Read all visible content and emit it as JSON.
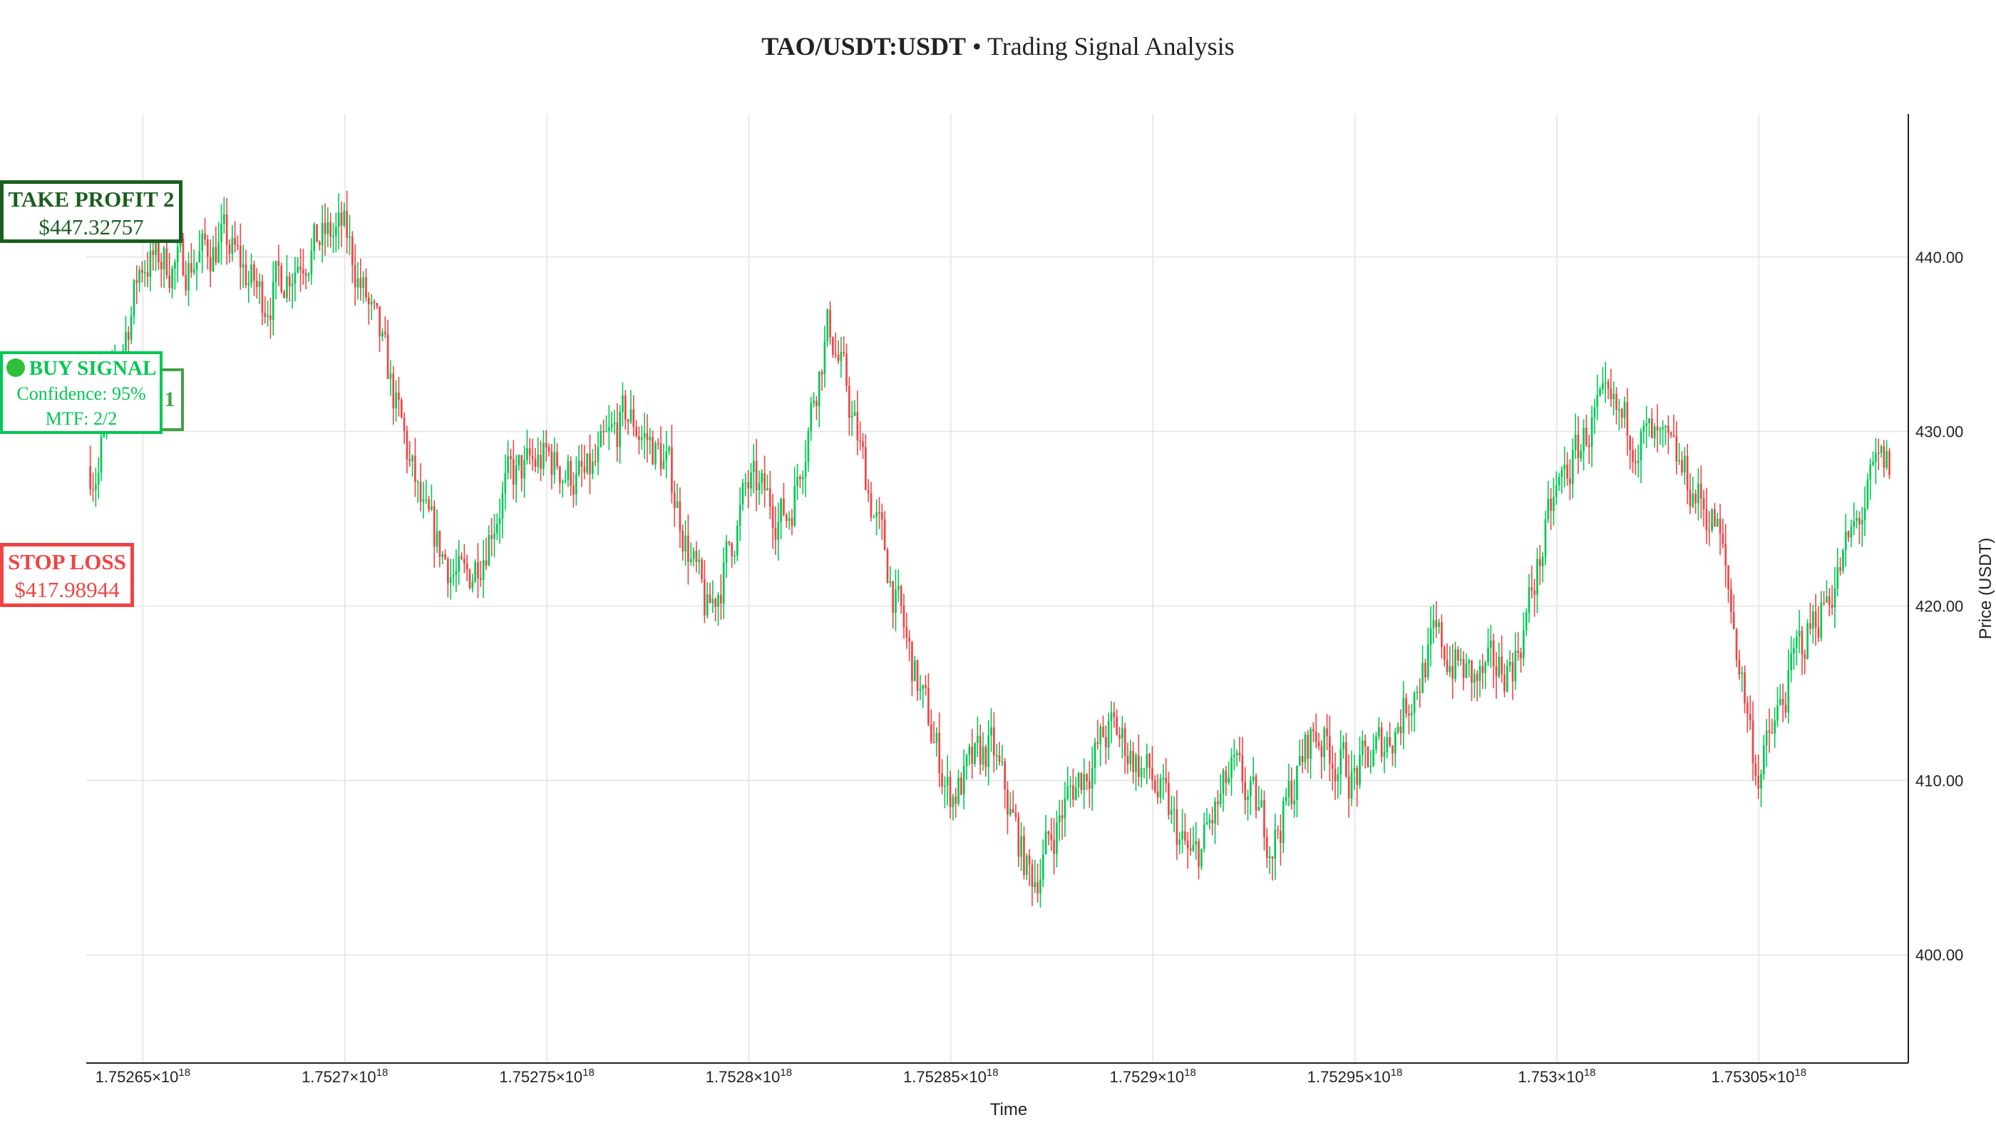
{
  "title": {
    "pair": "TAO/USDT:USDT",
    "separator": " • ",
    "subtitle": "Trading Signal Analysis"
  },
  "chart_data": {
    "type": "candlestick",
    "title": "TAO/USDT:USDT • Trading Signal Analysis",
    "xlabel": "Time",
    "ylabel": "Price (USDT)",
    "ylim": [
      393.8,
      448.2
    ],
    "y_ticks": [
      400,
      410,
      420,
      430,
      440
    ],
    "y_tick_labels": [
      "400.00",
      "410.00",
      "420.00",
      "430.00",
      "440.00"
    ],
    "x_ticks": [
      1.75265,
      1.7527,
      1.75275,
      1.7528,
      1.75285,
      1.7529,
      1.75295,
      1.753,
      1.75305
    ],
    "x_tick_labels": [
      "1.75265×10",
      "1.7527×10",
      "1.75275×10",
      "1.7528×10",
      "1.75285×10",
      "1.7529×10",
      "1.75295×10",
      "1.753×10",
      "1.75305×10"
    ],
    "x_tick_exponent": "18",
    "xlim": [
      1.752636,
      1.753087
    ],
    "grid": true,
    "y_axis_side": "right",
    "colors": {
      "up": "#00c853",
      "down": "#ef4444",
      "grid": "#e3e3e3"
    },
    "price_path": [
      [
        1.75264,
        429.5
      ],
      [
        1.75265,
        440.0
      ],
      [
        1.75266,
        439.5
      ],
      [
        1.75267,
        441.0
      ],
      [
        1.75268,
        437.5
      ],
      [
        1.75269,
        440.5
      ],
      [
        1.7527,
        441.5
      ],
      [
        1.75271,
        434.0
      ],
      [
        1.75272,
        424.5
      ],
      [
        1.75273,
        421.0
      ],
      [
        1.75274,
        427.0
      ],
      [
        1.75275,
        428.5
      ],
      [
        1.75276,
        427.0
      ],
      [
        1.75277,
        431.0
      ],
      [
        1.75278,
        428.0
      ],
      [
        1.75279,
        419.0
      ],
      [
        1.7528,
        427.0
      ],
      [
        1.75281,
        425.0
      ],
      [
        1.75282,
        436.5
      ],
      [
        1.75283,
        426.5
      ],
      [
        1.75284,
        417.0
      ],
      [
        1.75285,
        409.0
      ],
      [
        1.75286,
        412.0
      ],
      [
        1.75287,
        404.0
      ],
      [
        1.75288,
        409.5
      ],
      [
        1.75289,
        413.0
      ],
      [
        1.7529,
        410.0
      ],
      [
        1.75291,
        405.0
      ],
      [
        1.75292,
        410.5
      ],
      [
        1.75293,
        406.5
      ],
      [
        1.75294,
        413.0
      ],
      [
        1.75295,
        410.0
      ],
      [
        1.75296,
        413.0
      ],
      [
        1.75297,
        418.0
      ],
      [
        1.75298,
        415.5
      ],
      [
        1.75299,
        417.0
      ],
      [
        1.753,
        426.5
      ],
      [
        1.75301,
        431.0
      ],
      [
        1.75302,
        430.0
      ],
      [
        1.75303,
        428.0
      ],
      [
        1.75304,
        424.5
      ],
      [
        1.75305,
        410.0
      ],
      [
        1.75306,
        417.5
      ],
      [
        1.75307,
        422.0
      ],
      [
        1.75308,
        428.0
      ]
    ],
    "annotations": [
      {
        "label": "TAKE PROFIT 2",
        "value": "$447.32757",
        "price": 447.32757
      },
      {
        "label": "BUY SIGNAL",
        "confidence": "Confidence: 95%",
        "mtf": "MTF: 2/2",
        "marker": "1"
      },
      {
        "label": "STOP LOSS",
        "value": "$417.98944",
        "price": 417.98944
      }
    ]
  }
}
